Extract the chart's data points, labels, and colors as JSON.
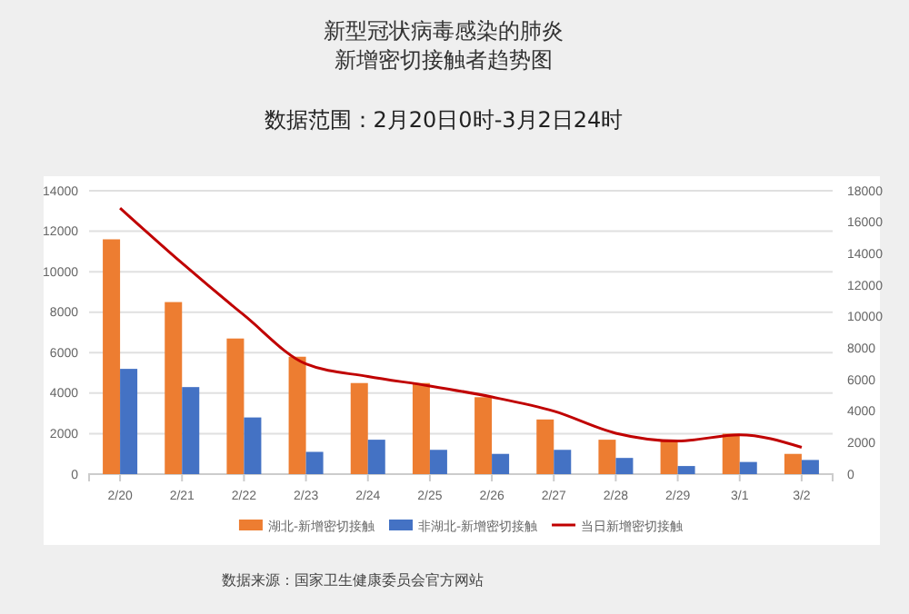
{
  "chart_data": {
    "type": "bar",
    "title": "新型冠状病毒感染的肺炎新增密切接触者趋势图",
    "subtitle": "数据范围：2月20日0时-3月2日24时",
    "categories": [
      "2/20",
      "2/21",
      "2/22",
      "2/23",
      "2/24",
      "2/25",
      "2/26",
      "2/27",
      "2/28",
      "2/29",
      "3/1",
      "3/2"
    ],
    "series": [
      {
        "name": "湖北-新增密切接触",
        "color": "#ed7d31",
        "values": [
          11600,
          8500,
          6700,
          5800,
          4500,
          4500,
          3800,
          2700,
          1700,
          1700,
          2000,
          1000
        ]
      },
      {
        "name": "非湖北-新增密切接触",
        "color": "#4472c4",
        "values": [
          5200,
          4300,
          2800,
          1100,
          1700,
          1200,
          1000,
          1200,
          800,
          400,
          600,
          700
        ]
      },
      {
        "name": "当日新增密切接触",
        "type": "line",
        "axis": "y2",
        "color": "#c00000",
        "values": [
          16900,
          13400,
          10100,
          7000,
          6200,
          5600,
          4900,
          4000,
          2600,
          2100,
          2500,
          1700
        ]
      }
    ],
    "ylim": [
      0,
      14000
    ],
    "yticks": [
      0,
      2000,
      4000,
      6000,
      8000,
      10000,
      12000,
      14000
    ],
    "y2lim": [
      0,
      18000
    ],
    "y2ticks": [
      0,
      2000,
      4000,
      6000,
      8000,
      10000,
      12000,
      14000,
      16000,
      18000
    ],
    "grid": "y",
    "legend": "bottom",
    "annotations": [
      "数据来源：国家卫生健康委员会官方网站"
    ]
  }
}
